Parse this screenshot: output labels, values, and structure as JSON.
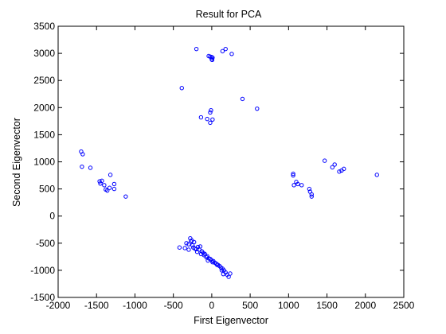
{
  "chart_data": {
    "type": "scatter",
    "title": "Result for PCA",
    "xlabel": "First Eigenvector",
    "ylabel": "Second Eigenvector",
    "xlim": [
      -2000,
      2500
    ],
    "ylim": [
      -1500,
      3500
    ],
    "xticks": [
      -2000,
      -1500,
      -1000,
      -500,
      0,
      500,
      1000,
      1500,
      2000,
      2500
    ],
    "yticks": [
      -1500,
      -1000,
      -500,
      0,
      500,
      1000,
      1500,
      2000,
      2500,
      3000,
      3500
    ],
    "grid": false,
    "marker": "circle-open",
    "color": "#0000ff",
    "points": [
      [
        -200,
        3080
      ],
      [
        140,
        3040
      ],
      [
        180,
        3080
      ],
      [
        260,
        2990
      ],
      [
        -40,
        2950
      ],
      [
        -20,
        2940
      ],
      [
        0,
        2930
      ],
      [
        10,
        2920
      ],
      [
        0,
        2890
      ],
      [
        5,
        2880
      ],
      [
        -390,
        2360
      ],
      [
        400,
        2160
      ],
      [
        590,
        1980
      ],
      [
        -20,
        1910
      ],
      [
        -10,
        1950
      ],
      [
        -140,
        1820
      ],
      [
        -60,
        1790
      ],
      [
        -20,
        1720
      ],
      [
        10,
        1780
      ],
      [
        -1700,
        1190
      ],
      [
        -1680,
        1140
      ],
      [
        -1580,
        890
      ],
      [
        -1690,
        910
      ],
      [
        -1460,
        640
      ],
      [
        -1450,
        600
      ],
      [
        -1430,
        650
      ],
      [
        -1400,
        570
      ],
      [
        -1380,
        490
      ],
      [
        -1360,
        470
      ],
      [
        -1330,
        520
      ],
      [
        -1320,
        760
      ],
      [
        -1270,
        590
      ],
      [
        -1270,
        500
      ],
      [
        -1120,
        360
      ],
      [
        1060,
        750
      ],
      [
        1060,
        780
      ],
      [
        1070,
        570
      ],
      [
        1100,
        630
      ],
      [
        1120,
        590
      ],
      [
        1170,
        570
      ],
      [
        1270,
        500
      ],
      [
        1280,
        450
      ],
      [
        1300,
        400
      ],
      [
        1300,
        360
      ],
      [
        1470,
        1020
      ],
      [
        1570,
        900
      ],
      [
        1600,
        950
      ],
      [
        1660,
        820
      ],
      [
        1690,
        840
      ],
      [
        1720,
        870
      ],
      [
        2150,
        760
      ],
      [
        -420,
        -580
      ],
      [
        -330,
        -500
      ],
      [
        -300,
        -520
      ],
      [
        -280,
        -410
      ],
      [
        -260,
        -450
      ],
      [
        -250,
        -540
      ],
      [
        -230,
        -480
      ],
      [
        -220,
        -600
      ],
      [
        -200,
        -610
      ],
      [
        -180,
        -570
      ],
      [
        -160,
        -620
      ],
      [
        -140,
        -700
      ],
      [
        -130,
        -650
      ],
      [
        -110,
        -680
      ],
      [
        -100,
        -720
      ],
      [
        -90,
        -700
      ],
      [
        -70,
        -760
      ],
      [
        -60,
        -740
      ],
      [
        -40,
        -780
      ],
      [
        -20,
        -790
      ],
      [
        0,
        -820
      ],
      [
        20,
        -830
      ],
      [
        40,
        -860
      ],
      [
        60,
        -880
      ],
      [
        80,
        -900
      ],
      [
        100,
        -920
      ],
      [
        120,
        -950
      ],
      [
        140,
        -970
      ],
      [
        160,
        -1000
      ],
      [
        180,
        -1040
      ],
      [
        200,
        -1080
      ],
      [
        220,
        -1120
      ],
      [
        240,
        -1060
      ],
      [
        -240,
        -580
      ],
      [
        -300,
        -620
      ],
      [
        -350,
        -590
      ],
      [
        -270,
        -470
      ],
      [
        -190,
        -660
      ],
      [
        -150,
        -560
      ],
      [
        -50,
        -820
      ],
      [
        10,
        -850
      ],
      [
        70,
        -900
      ],
      [
        130,
        -1000
      ],
      [
        150,
        -1070
      ]
    ]
  }
}
